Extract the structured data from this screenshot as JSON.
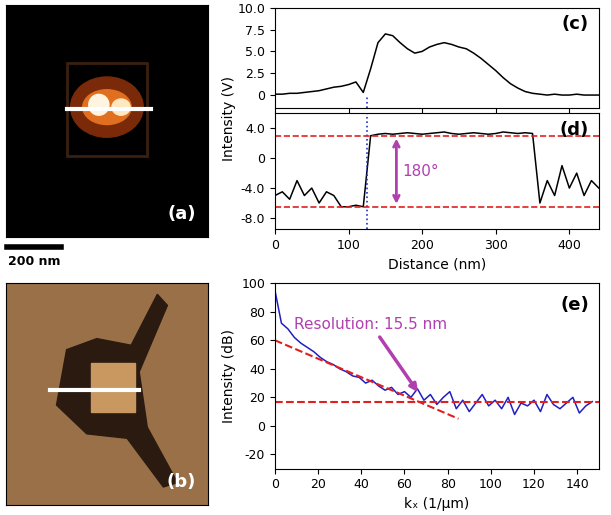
{
  "chart_data": [
    {
      "type": "image",
      "label": "(a)",
      "scale_bar": "200 nm"
    },
    {
      "type": "image",
      "label": "(b)"
    },
    {
      "type": "line",
      "label": "(c)",
      "ylabel": "Intensity (V)",
      "color": "#000000",
      "x": [
        0,
        10,
        20,
        30,
        40,
        50,
        60,
        70,
        80,
        90,
        100,
        110,
        120,
        130,
        140,
        150,
        160,
        170,
        180,
        190,
        200,
        210,
        220,
        230,
        240,
        250,
        260,
        270,
        280,
        290,
        300,
        310,
        320,
        330,
        340,
        350,
        360,
        370,
        380,
        390,
        400,
        410,
        420,
        430,
        440
      ],
      "values": [
        0.1,
        0.1,
        0.2,
        0.2,
        0.3,
        0.4,
        0.5,
        0.7,
        0.9,
        1.0,
        1.2,
        1.5,
        0.3,
        3.0,
        6.0,
        7.0,
        6.8,
        6.0,
        5.3,
        4.8,
        5.0,
        5.5,
        5.8,
        6.0,
        5.8,
        5.5,
        5.3,
        4.8,
        4.2,
        3.5,
        2.8,
        2.0,
        1.3,
        0.8,
        0.4,
        0.2,
        0.1,
        0.0,
        0.1,
        0.0,
        0.0,
        0.1,
        0.0,
        0.0,
        0.0
      ],
      "xlim": [
        0,
        440
      ],
      "ylim": [
        -1.5,
        10
      ],
      "xticks": [
        0,
        100,
        200,
        300,
        400
      ],
      "yticks": [
        0,
        2.5,
        5.0,
        7.5,
        10.0
      ],
      "tick_labels": "y",
      "vline": 125
    },
    {
      "type": "line",
      "label": "(d)",
      "xlabel": "Distance (nm)",
      "color": "#000000",
      "x": [
        0,
        10,
        20,
        30,
        40,
        50,
        60,
        70,
        80,
        90,
        100,
        110,
        120,
        130,
        140,
        150,
        160,
        170,
        180,
        190,
        200,
        210,
        220,
        230,
        240,
        250,
        260,
        270,
        280,
        290,
        300,
        310,
        320,
        330,
        340,
        350,
        360,
        370,
        380,
        390,
        400,
        410,
        420,
        430,
        440
      ],
      "values": [
        -5,
        -4.5,
        -5.5,
        -3,
        -5,
        -4,
        -6,
        -4.5,
        -5,
        -6.5,
        -6.5,
        -6.3,
        -6.5,
        3.0,
        3.2,
        3.3,
        3.2,
        3.3,
        3.4,
        3.3,
        3.2,
        3.3,
        3.4,
        3.5,
        3.3,
        3.2,
        3.3,
        3.4,
        3.3,
        3.2,
        3.3,
        3.5,
        3.4,
        3.3,
        3.4,
        3.3,
        -6,
        -3,
        -5,
        -1,
        -4,
        -2,
        -5,
        -3,
        -4
      ],
      "xlim": [
        0,
        440
      ],
      "ylim": [
        -9.5,
        6
      ],
      "xticks": [
        0,
        100,
        200,
        300,
        400
      ],
      "yticks": [
        -8.0,
        -4.0,
        0,
        4.0
      ],
      "vline": 125,
      "ref_lines": [
        3,
        -6.5
      ],
      "ref_color": "#e02020",
      "line_style": "dashed",
      "annotation": {
        "text": "180°",
        "x": 165,
        "color": "#b040b0"
      }
    },
    {
      "type": "line",
      "label": "(e)",
      "xlabel": "kₓ (1/μm)",
      "ylabel": "Intensity (dB)",
      "color": "#2020c0",
      "x": [
        0,
        3,
        6,
        9,
        12,
        15,
        18,
        21,
        24,
        27,
        30,
        33,
        36,
        39,
        42,
        45,
        48,
        51,
        54,
        57,
        60,
        63,
        66,
        69,
        72,
        75,
        78,
        81,
        84,
        87,
        90,
        93,
        96,
        99,
        102,
        105,
        108,
        111,
        114,
        117,
        120,
        123,
        126,
        129,
        132,
        135,
        138,
        141,
        144,
        147
      ],
      "values": [
        95,
        72,
        68,
        62,
        58,
        55,
        52,
        48,
        45,
        43,
        40,
        38,
        35,
        34,
        30,
        32,
        28,
        25,
        27,
        22,
        24,
        20,
        26,
        18,
        22,
        15,
        20,
        24,
        12,
        18,
        10,
        16,
        22,
        14,
        18,
        12,
        20,
        8,
        16,
        14,
        18,
        10,
        22,
        15,
        12,
        16,
        20,
        9,
        14,
        17
      ],
      "xlim": [
        0,
        150
      ],
      "ylim": [
        -30,
        100
      ],
      "xticks": [
        0,
        20,
        40,
        60,
        80,
        100,
        120,
        140
      ],
      "yticks": [
        -20,
        0,
        20,
        40,
        60,
        80,
        100
      ],
      "fit_lines": [
        {
          "x": [
            0,
            85
          ],
          "values": [
            60,
            5
          ],
          "color": "#e02020",
          "line_style": "dashed"
        },
        {
          "x": [
            0,
            150
          ],
          "values": [
            17,
            17
          ],
          "color": "#e02020",
          "line_style": "dashed"
        }
      ],
      "annotation": {
        "text": "Resolution: 15.5 nm",
        "x": 67,
        "y": 22,
        "color": "#b040b0"
      }
    }
  ]
}
